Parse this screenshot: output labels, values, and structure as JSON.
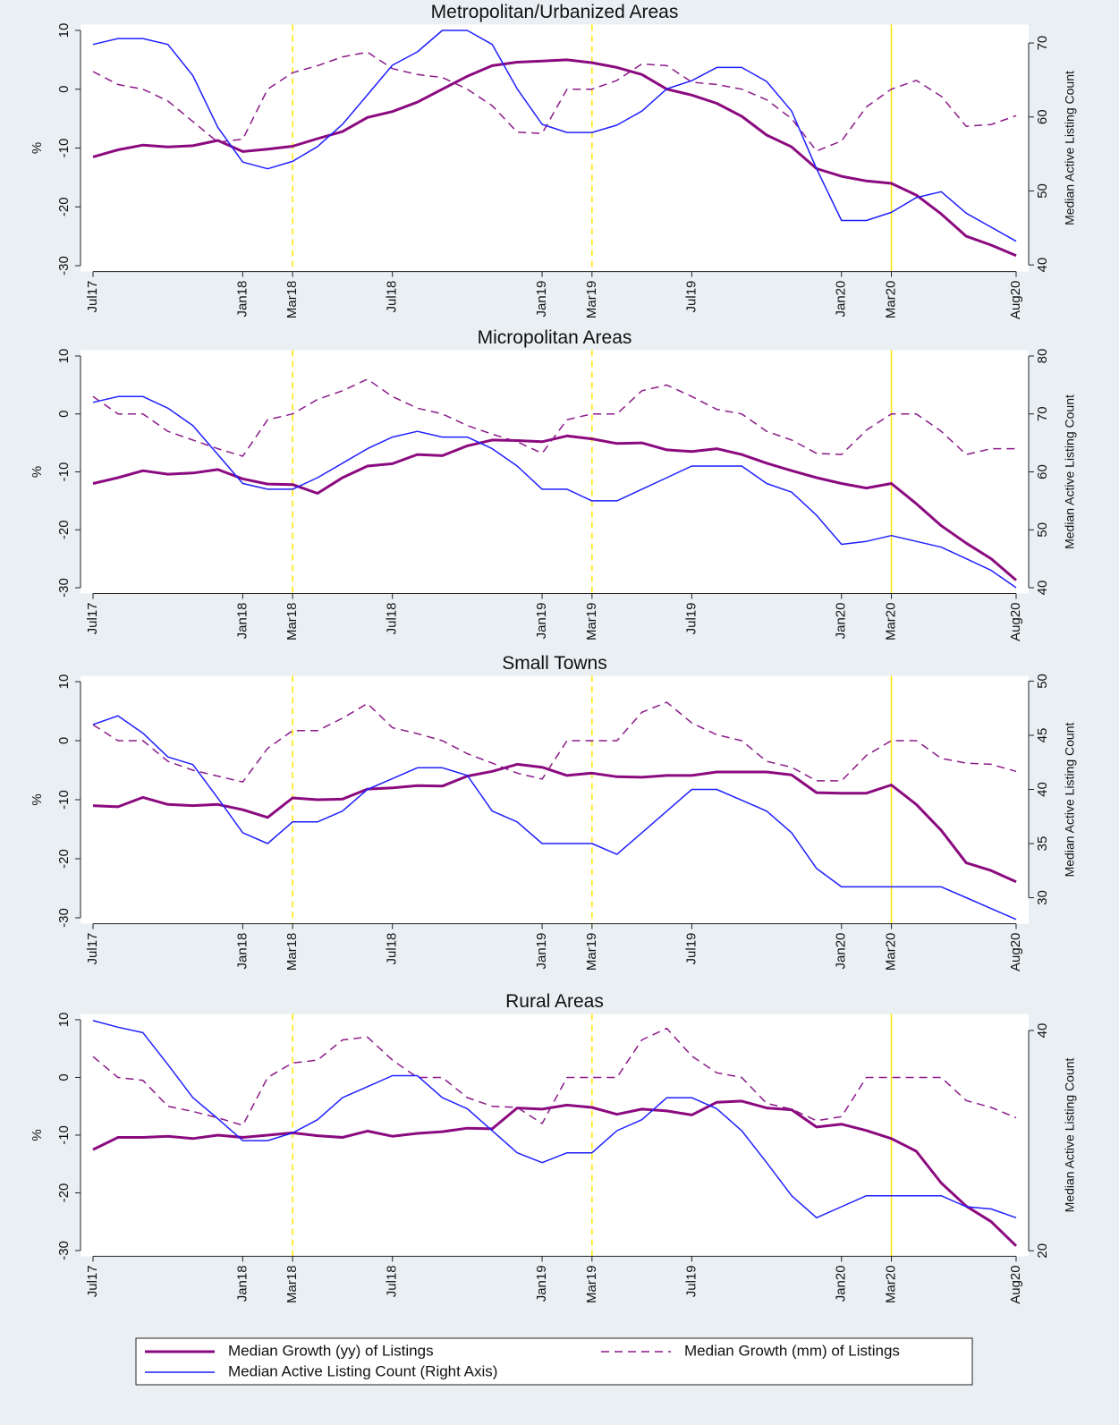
{
  "chart_data": [
    {
      "type": "line",
      "title": "Metropolitan/Urbanized Areas",
      "ylabel": "%",
      "y2label": "Median Active Listing Count",
      "categories": [
        "Jul17",
        null,
        null,
        null,
        null,
        null,
        "Jan18",
        null,
        "Mar18",
        null,
        null,
        null,
        "Jul18",
        null,
        null,
        null,
        null,
        null,
        "Jan19",
        null,
        "Mar19",
        null,
        null,
        null,
        "Jul19",
        null,
        null,
        null,
        null,
        null,
        "Jan20",
        null,
        "Mar20",
        null,
        null,
        null,
        null,
        "Aug20"
      ],
      "ylim": [
        -31,
        11
      ],
      "yticks": [
        -30,
        -20,
        -10,
        0,
        10
      ],
      "y2lim": [
        39.1,
        72.5
      ],
      "y2ticks": [
        40,
        50,
        60,
        70
      ],
      "vlines": [
        {
          "at": "Mar18",
          "style": "dashed",
          "color": "#ffe600"
        },
        {
          "at": "Mar19",
          "style": "dashed",
          "color": "#ffe600"
        },
        {
          "at": "Mar20",
          "style": "solid",
          "color": "#ffe600"
        }
      ],
      "series": [
        {
          "name": "Median Growth (yy) of Listings",
          "color": "#8b0a7f",
          "style": "bold",
          "values": [
            -11.5,
            -10.3,
            -9.5,
            -9.8,
            -9.6,
            -8.7,
            -10.6,
            -10.2,
            -9.7,
            -8.4,
            -7.2,
            -4.8,
            -3.8,
            -2.2,
            0,
            2.2,
            4,
            4.6,
            4.8,
            5,
            4.5,
            3.7,
            2.5,
            0,
            -1,
            -2.4,
            -4.6,
            -7.8,
            -9.8,
            -13.5,
            -14.8,
            -15.6,
            -16,
            -18,
            -21.2,
            -25,
            -26.5,
            -28.3
          ]
        },
        {
          "name": "Median Growth (mm) of Listings",
          "color": "#8b1a89",
          "style": "dashed",
          "values": [
            3,
            0.8,
            0,
            -2,
            -5.5,
            -9,
            -8.5,
            0,
            2.8,
            4,
            5.5,
            6.3,
            3.5,
            2.5,
            2,
            0,
            -2.8,
            -7.3,
            -7.5,
            0,
            0,
            1.5,
            4.3,
            4,
            1.2,
            0.8,
            0,
            -1.8,
            -5,
            -10.5,
            -8.8,
            -3,
            0,
            1.5,
            -1.2,
            -6.3,
            -6,
            -4.5
          ]
        },
        {
          "name": "Median Active Listing Count (Right Axis)",
          "color": "#1f1fff",
          "style": "solid",
          "axis": "y2",
          "values": [
            69.8,
            70.6,
            70.6,
            69.8,
            65.6,
            58.6,
            53.9,
            53,
            54,
            56,
            59,
            63,
            67,
            68.8,
            71.7,
            71.7,
            69.8,
            63.8,
            59,
            57.9,
            57.9,
            58.9,
            60.8,
            63.8,
            64.9,
            66.7,
            66.7,
            64.8,
            60.8,
            53,
            46,
            46,
            47.1,
            49.1,
            49.9,
            47,
            45.1,
            43.2
          ]
        }
      ]
    },
    {
      "type": "line",
      "title": "Micropolitan Areas",
      "ylabel": "%",
      "y2label": "Median Active Listing Count",
      "categories": [
        "Jul17",
        null,
        null,
        null,
        null,
        null,
        "Jan18",
        null,
        "Mar18",
        null,
        null,
        null,
        "Jul18",
        null,
        null,
        null,
        null,
        null,
        "Jan19",
        null,
        "Mar19",
        null,
        null,
        null,
        "Jul19",
        null,
        null,
        null,
        null,
        null,
        "Jan20",
        null,
        "Mar20",
        null,
        null,
        null,
        null,
        "Aug20"
      ],
      "ylim": [
        -31,
        11
      ],
      "yticks": [
        -30,
        -20,
        -10,
        0,
        10
      ],
      "y2lim": [
        39,
        81
      ],
      "y2ticks": [
        40,
        50,
        60,
        70,
        80
      ],
      "vlines": [
        {
          "at": "Mar18",
          "style": "dashed",
          "color": "#ffe600"
        },
        {
          "at": "Mar19",
          "style": "dashed",
          "color": "#ffe600"
        },
        {
          "at": "Mar20",
          "style": "solid",
          "color": "#ffe600"
        }
      ],
      "series": [
        {
          "color": "#8b0a7f",
          "style": "bold",
          "values": [
            -12,
            -11,
            -9.8,
            -10.4,
            -10.2,
            -9.6,
            -11.2,
            -12.1,
            -12.2,
            -13.7,
            -11,
            -9,
            -8.6,
            -7,
            -7.2,
            -5.5,
            -4.5,
            -4.6,
            -4.8,
            -3.8,
            -4.3,
            -5.1,
            -5,
            -6.2,
            -6.5,
            -6,
            -7,
            -8.5,
            -9.8,
            -11,
            -12,
            -12.8,
            -12,
            -15.5,
            -19.3,
            -22.3,
            -25,
            -28.7
          ]
        },
        {
          "color": "#8b1a89",
          "style": "dashed",
          "values": [
            3,
            0,
            0,
            -3,
            -4.5,
            -6,
            -7.3,
            -1,
            0,
            2.5,
            4,
            6,
            3,
            1,
            0,
            -2,
            -3.5,
            -4.8,
            -6.8,
            -1,
            0,
            0,
            4,
            5,
            3,
            0.8,
            0,
            -3,
            -4.5,
            -6.8,
            -7,
            -2.8,
            0,
            0,
            -3,
            -7,
            -6,
            -6
          ]
        },
        {
          "color": "#1f1fff",
          "style": "solid",
          "axis": "y2",
          "values": [
            72,
            73,
            73,
            71,
            68,
            63,
            58,
            57,
            57,
            59,
            61.5,
            64,
            66,
            67,
            66,
            66,
            64,
            61,
            57,
            57,
            55,
            55,
            57,
            59,
            61,
            61,
            61,
            58,
            56.5,
            52.5,
            47.5,
            48,
            49,
            48,
            47,
            45,
            43,
            40
          ]
        }
      ]
    },
    {
      "type": "line",
      "title": "Small Towns",
      "ylabel": "%",
      "y2label": "Median Active Listing Count",
      "categories": [
        "Jul17",
        null,
        null,
        null,
        null,
        null,
        "Jan18",
        null,
        "Mar18",
        null,
        null,
        null,
        "Jul18",
        null,
        null,
        null,
        null,
        null,
        "Jan19",
        null,
        "Mar19",
        null,
        null,
        null,
        "Jul19",
        null,
        null,
        null,
        null,
        null,
        "Jan20",
        null,
        "Mar20",
        null,
        null,
        null,
        null,
        "Aug20"
      ],
      "ylim": [
        -31,
        11
      ],
      "yticks": [
        -30,
        -20,
        -10,
        0,
        10
      ],
      "y2lim": [
        27.6,
        50.5
      ],
      "y2ticks": [
        30,
        35,
        40,
        45,
        50
      ],
      "vlines": [
        {
          "at": "Mar18",
          "style": "dashed",
          "color": "#ffe600"
        },
        {
          "at": "Mar19",
          "style": "dashed",
          "color": "#ffe600"
        },
        {
          "at": "Mar20",
          "style": "solid",
          "color": "#ffe600"
        }
      ],
      "series": [
        {
          "color": "#8b0a7f",
          "style": "bold",
          "values": [
            -11,
            -11.2,
            -9.6,
            -10.8,
            -11,
            -10.8,
            -11.7,
            -13,
            -9.7,
            -10,
            -9.9,
            -8.2,
            -8,
            -7.6,
            -7.7,
            -6,
            -5.2,
            -4,
            -4.5,
            -5.9,
            -5.5,
            -6.1,
            -6.2,
            -5.9,
            -5.9,
            -5.3,
            -5.3,
            -5.3,
            -5.8,
            -8.8,
            -8.9,
            -8.9,
            -7.5,
            -10.8,
            -15.2,
            -20.7,
            -22,
            -23.9
          ]
        },
        {
          "color": "#8b1a89",
          "style": "dashed",
          "values": [
            2.7,
            0,
            0,
            -3.5,
            -5,
            -6,
            -7,
            -1.3,
            1.7,
            1.7,
            3.8,
            6.3,
            2.2,
            1.2,
            0,
            -2.2,
            -3.8,
            -5.5,
            -6.5,
            0,
            0,
            0,
            4.8,
            6.5,
            3,
            1,
            0,
            -3.5,
            -4.5,
            -6.8,
            -6.8,
            -2.5,
            0,
            0,
            -3,
            -3.8,
            -4,
            -5.2
          ]
        },
        {
          "color": "#1f1fff",
          "style": "solid",
          "axis": "y2",
          "values": [
            46,
            46.8,
            45.2,
            43,
            42.3,
            39.2,
            36,
            35,
            37,
            37,
            38,
            40,
            41,
            42,
            42,
            41.3,
            38,
            37,
            35,
            35,
            35,
            34,
            36,
            38,
            40,
            40,
            39,
            38,
            36,
            32.7,
            31,
            31,
            31,
            31,
            31,
            30,
            29,
            28
          ]
        }
      ]
    },
    {
      "type": "line",
      "title": "Rural Areas",
      "ylabel": "%",
      "y2label": "Median Active Listing Count",
      "categories": [
        "Jul17",
        null,
        null,
        null,
        null,
        null,
        "Jan18",
        null,
        "Mar18",
        null,
        null,
        null,
        "Jul18",
        null,
        null,
        null,
        null,
        null,
        "Jan19",
        null,
        "Mar19",
        null,
        null,
        null,
        "Jul19",
        null,
        null,
        null,
        null,
        null,
        "Jan20",
        null,
        "Mar20",
        null,
        null,
        null,
        null,
        "Aug20"
      ],
      "ylim": [
        -31,
        11
      ],
      "yticks": [
        -30,
        -20,
        -10,
        0,
        10
      ],
      "y2lim": [
        19.5,
        41.5
      ],
      "y2ticks": [
        20,
        40
      ],
      "vlines": [
        {
          "at": "Mar18",
          "style": "dashed",
          "color": "#ffe600"
        },
        {
          "at": "Mar19",
          "style": "dashed",
          "color": "#ffe600"
        },
        {
          "at": "Mar20",
          "style": "solid",
          "color": "#ffe600"
        }
      ],
      "series": [
        {
          "color": "#8b0a7f",
          "style": "bold",
          "values": [
            -12.5,
            -10.4,
            -10.4,
            -10.2,
            -10.6,
            -10,
            -10.4,
            -10,
            -9.6,
            -10.1,
            -10.4,
            -9.3,
            -10.2,
            -9.7,
            -9.4,
            -8.8,
            -8.9,
            -5.3,
            -5.5,
            -4.8,
            -5.2,
            -6.4,
            -5.5,
            -5.8,
            -6.5,
            -4.3,
            -4.1,
            -5.3,
            -5.6,
            -8.6,
            -8.1,
            -9.2,
            -10.6,
            -12.8,
            -18.3,
            -22.3,
            -25,
            -29.2
          ]
        },
        {
          "color": "#8b1a89",
          "style": "dashed",
          "values": [
            3.6,
            0,
            -0.5,
            -5,
            -5.9,
            -7,
            -8.3,
            0,
            2.5,
            3,
            6.5,
            7,
            3,
            0,
            0,
            -3.5,
            -5,
            -5.2,
            -8,
            0,
            0,
            0,
            6.5,
            8.5,
            3.7,
            0.8,
            0,
            -4.5,
            -5.5,
            -7.5,
            -6.8,
            0,
            0,
            0,
            0,
            -4,
            -5.2,
            -7
          ]
        },
        {
          "color": "#1f1fff",
          "style": "solid",
          "axis": "y2",
          "values": [
            40.9,
            40.3,
            39.8,
            36.9,
            33.9,
            32,
            30,
            30,
            30.7,
            31.9,
            33.9,
            34.9,
            35.9,
            35.9,
            33.9,
            32.9,
            30.9,
            28.9,
            28,
            28.9,
            28.9,
            30.9,
            31.9,
            33.9,
            33.9,
            32.9,
            30.9,
            28,
            25,
            23,
            24,
            25,
            25,
            25,
            25,
            24,
            23.8,
            23
          ]
        }
      ]
    }
  ]
}
